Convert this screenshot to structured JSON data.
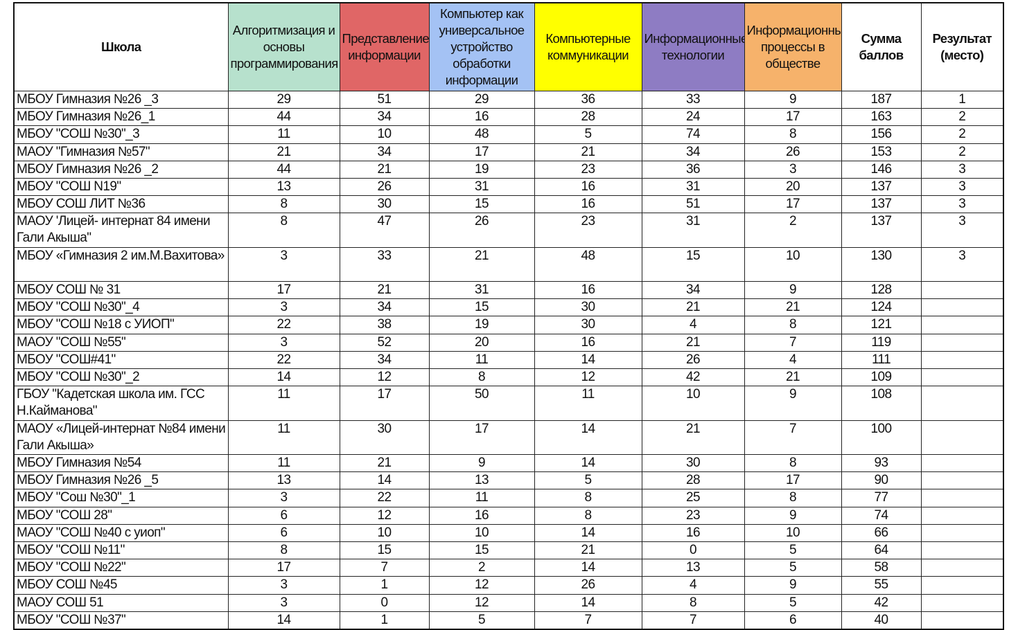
{
  "headers": [
    {
      "label": "Школа",
      "bold": true,
      "color": "#ffffff"
    },
    {
      "label": "Алгоритмизация и основы программирования",
      "color": "#b7e1cd"
    },
    {
      "label": "Представление информации",
      "color": "#e06666"
    },
    {
      "label": "Компьютер как универсальное устройство обработки информации",
      "color": "#a4c2f4"
    },
    {
      "label": "Компьютерные коммуникации",
      "color": "#ffff00"
    },
    {
      "label": "Информационные технологии",
      "color": "#8e7cc3"
    },
    {
      "label": "Информационные процессы в обществе",
      "color": "#f6b26b"
    },
    {
      "label": "Сумма баллов",
      "bold": true,
      "color": "#ffffff"
    },
    {
      "label": "Результат (место)",
      "bold": true,
      "color": "#ffffff"
    }
  ],
  "rows": [
    [
      "МБОУ Гимназия №26 _3",
      "29",
      "51",
      "29",
      "36",
      "33",
      "9",
      "187",
      "1"
    ],
    [
      "МБОУ Гимназия №26_1",
      "44",
      "34",
      "16",
      "28",
      "24",
      "17",
      "163",
      "2"
    ],
    [
      "МБОУ \"СОШ №30\"_3",
      "11",
      "10",
      "48",
      "5",
      "74",
      "8",
      "156",
      "2"
    ],
    [
      "МАОУ \"Гимназия №57\"",
      "21",
      "34",
      "17",
      "21",
      "34",
      "26",
      "153",
      "2"
    ],
    [
      "МБОУ Гимназия №26 _2",
      "44",
      "21",
      "19",
      "23",
      "36",
      "3",
      "146",
      "3"
    ],
    [
      "МБОУ \"СОШ N19\"",
      "13",
      "26",
      "31",
      "16",
      "31",
      "20",
      "137",
      "3"
    ],
    [
      "МБОУ СОШ ЛИТ №36",
      "8",
      "30",
      "15",
      "16",
      "51",
      "17",
      "137",
      "3"
    ],
    [
      "МАОУ 'Лицей- интернат 84 имени Гали Акыша\"",
      "8",
      "47",
      "26",
      "23",
      "31",
      "2",
      "137",
      "3"
    ],
    [
      "МБОУ «Гимназия 2 им.М.Вахитова»",
      "3",
      "33",
      "21",
      "48",
      "15",
      "10",
      "130",
      "3"
    ],
    [
      "МБОУ СОШ № 31",
      "17",
      "21",
      "31",
      "16",
      "34",
      "9",
      "128",
      ""
    ],
    [
      "МБОУ \"СОШ №30\"_4",
      "3",
      "34",
      "15",
      "30",
      "21",
      "21",
      "124",
      ""
    ],
    [
      "МБОУ \"СОШ №18 с УИОП\"",
      "22",
      "38",
      "19",
      "30",
      "4",
      "8",
      "121",
      ""
    ],
    [
      "МАОУ \"СОШ №55\"",
      "3",
      "52",
      "20",
      "16",
      "21",
      "7",
      "119",
      ""
    ],
    [
      "МБОУ \"СОШ#41\"",
      "22",
      "34",
      "11",
      "14",
      "26",
      "4",
      "111",
      ""
    ],
    [
      "МБОУ \"СОШ №30\"_2",
      "14",
      "12",
      "8",
      "12",
      "42",
      "21",
      "109",
      ""
    ],
    [
      "ГБОУ \"Кадетская школа им. ГСС Н.Кайманова\"",
      "11",
      "17",
      "50",
      "11",
      "10",
      "9",
      "108",
      ""
    ],
    [
      "МАОУ «Лицей-интернат №84 имени Гали Акыша»",
      "11",
      "30",
      "17",
      "14",
      "21",
      "7",
      "100",
      ""
    ],
    [
      "МБОУ Гимназия №54",
      "11",
      "21",
      "9",
      "14",
      "30",
      "8",
      "93",
      ""
    ],
    [
      "МБОУ Гимназия №26 _5",
      "13",
      "14",
      "13",
      "5",
      "28",
      "17",
      "90",
      ""
    ],
    [
      "МБОУ \"Сош №30\"_1",
      "3",
      "22",
      "11",
      "8",
      "25",
      "8",
      "77",
      ""
    ],
    [
      "МБОУ \"СОШ 28\"",
      "6",
      "12",
      "16",
      "8",
      "23",
      "9",
      "74",
      ""
    ],
    [
      "МАОУ \"СОШ №40 с уиоп\"",
      "6",
      "10",
      "10",
      "14",
      "16",
      "10",
      "66",
      ""
    ],
    [
      "МБОУ \"СОШ №11\"",
      "8",
      "15",
      "15",
      "21",
      "0",
      "5",
      "64",
      ""
    ],
    [
      "МБОУ \"СОШ №22\"",
      "17",
      "7",
      "2",
      "14",
      "13",
      "5",
      "58",
      ""
    ],
    [
      "МБОУ СОШ №45",
      "3",
      "1",
      "12",
      "26",
      "4",
      "9",
      "55",
      ""
    ],
    [
      "МАОУ СОШ 51",
      "3",
      "0",
      "12",
      "14",
      "8",
      "5",
      "42",
      ""
    ],
    [
      "МБОУ \"СОШ №37\"",
      "14",
      "1",
      "5",
      "7",
      "7",
      "6",
      "40",
      ""
    ]
  ]
}
